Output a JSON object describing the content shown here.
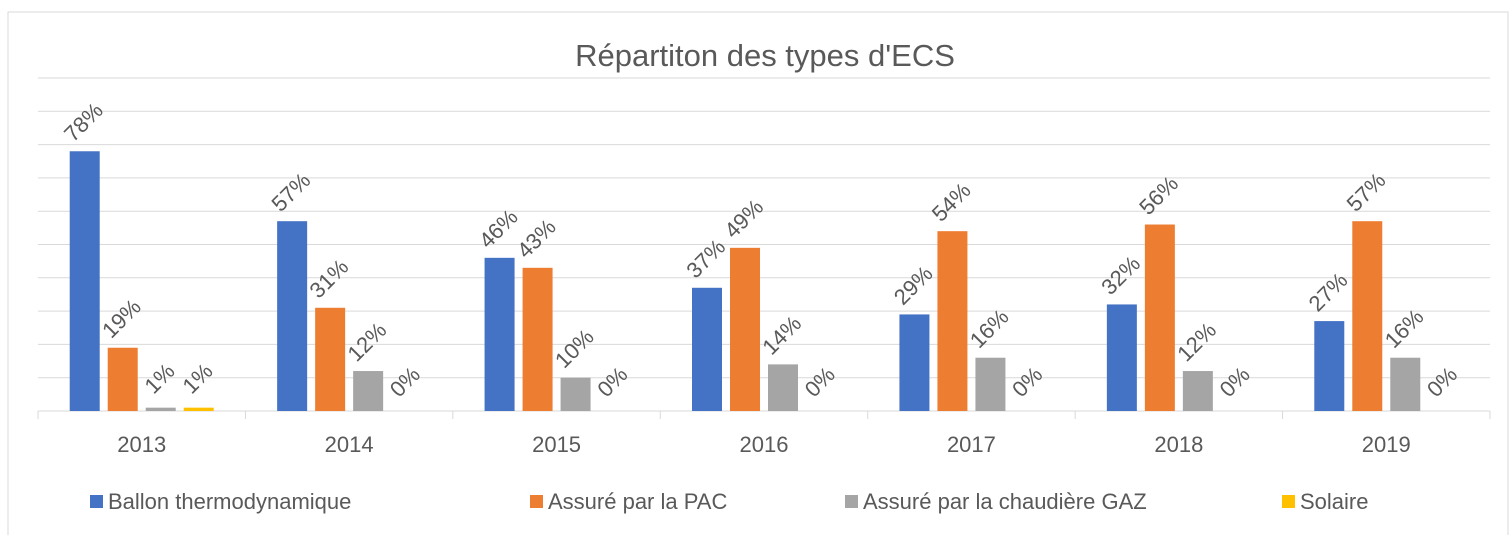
{
  "chart_data": {
    "type": "bar",
    "title": "Répartiton des types d'ECS",
    "categories": [
      "2013",
      "2014",
      "2015",
      "2016",
      "2017",
      "2018",
      "2019"
    ],
    "series": [
      {
        "name": "Ballon thermodynamique",
        "color": "#4472c4",
        "values": [
          78,
          57,
          46,
          37,
          29,
          32,
          27
        ],
        "value_labels": [
          "78%",
          "57%",
          "46%",
          "37%",
          "29%",
          "32%",
          "27%"
        ]
      },
      {
        "name": "Assuré par la PAC",
        "color": "#ed7d31",
        "values": [
          19,
          31,
          43,
          49,
          54,
          56,
          57
        ],
        "value_labels": [
          "19%",
          "31%",
          "43%",
          "49%",
          "54%",
          "56%",
          "57%"
        ]
      },
      {
        "name": "Assuré par la chaudière GAZ",
        "color": "#a5a5a5",
        "values": [
          1,
          12,
          10,
          14,
          16,
          12,
          16
        ],
        "value_labels": [
          "1%",
          "12%",
          "10%",
          "14%",
          "16%",
          "12%",
          "16%"
        ]
      },
      {
        "name": "Solaire",
        "color": "#ffc000",
        "values": [
          1,
          0,
          0,
          0,
          0,
          0,
          0
        ],
        "value_labels": [
          "1%",
          "0%",
          "0%",
          "0%",
          "0%",
          "0%",
          "0%"
        ]
      }
    ],
    "ylim": [
      0,
      100
    ],
    "yticks": [
      0,
      10,
      20,
      30,
      40,
      50,
      60,
      70,
      80,
      90,
      100
    ],
    "grid": true,
    "legend": "bottom"
  }
}
